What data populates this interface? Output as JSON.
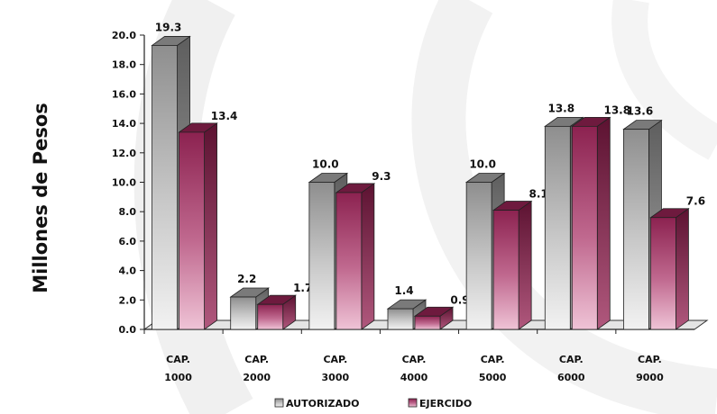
{
  "chart_data": {
    "type": "bar",
    "categories": [
      [
        "CAP.",
        "1000"
      ],
      [
        "CAP.",
        "2000"
      ],
      [
        "CAP.",
        "3000"
      ],
      [
        "CAP.",
        "4000"
      ],
      [
        "CAP.",
        "5000"
      ],
      [
        "CAP.",
        "6000"
      ],
      [
        "CAP.",
        "9000"
      ]
    ],
    "series": [
      {
        "name": "AUTORIZADO",
        "values": [
          19.3,
          2.2,
          10.0,
          1.4,
          10.0,
          13.8,
          13.6
        ],
        "labels": [
          "19.3",
          "2.2",
          "10.0",
          "1.4",
          "10.0",
          "13.8",
          "13.6"
        ],
        "color": "#9a9a9a"
      },
      {
        "name": "EJERCIDO",
        "values": [
          13.4,
          1.7,
          9.3,
          0.9,
          8.1,
          13.8,
          7.6
        ],
        "labels": [
          "13.4",
          "1.7",
          "9.3",
          "0.9",
          "8.1",
          "13.8",
          "7.6"
        ],
        "color": "#8c2250"
      }
    ],
    "ylabel": "Millones de Pesos",
    "ylim": [
      0,
      20
    ],
    "yticks": [
      "0.0",
      "2.0",
      "4.0",
      "6.0",
      "8.0",
      "10.0",
      "12.0",
      "14.0",
      "16.0",
      "18.0",
      "20.0"
    ],
    "legend_position": "bottom",
    "grid": false,
    "style": "3d"
  }
}
